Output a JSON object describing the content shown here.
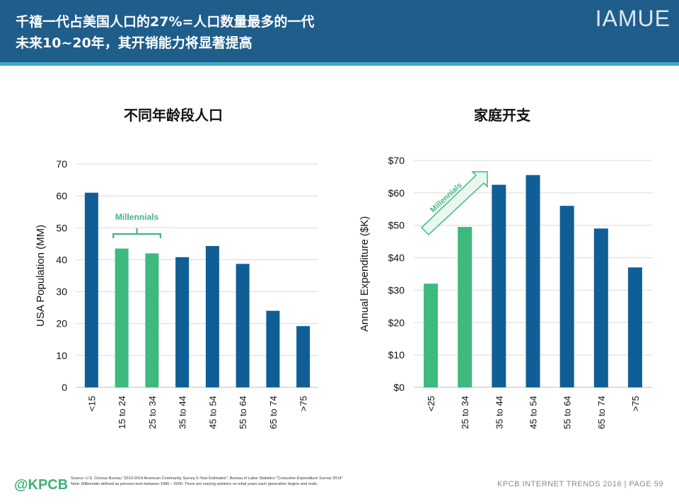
{
  "header": {
    "title_line1": "千禧一代占美国人口的27%=人口数量最多的一代",
    "title_line2": "未来10~20年，其开销能力将显著提高",
    "brand": "IAMUE"
  },
  "colors": {
    "header": "#1f5d8b",
    "stripe": "#3fa9c9",
    "blue_bar": "#0f5f96",
    "green_bar": "#3dba7e"
  },
  "chart_data": [
    {
      "type": "bar",
      "title": "不同年龄段人口",
      "ylabel": "USA Population (MM)",
      "xlabel": "",
      "ylim": [
        0,
        70
      ],
      "yticks": [
        "0",
        "10",
        "20",
        "30",
        "40",
        "50",
        "60",
        "70"
      ],
      "categories": [
        "<15",
        "15 to 24",
        "25 to 34",
        "35 to 44",
        "45 to 54",
        "55 to 64",
        "65 to 74",
        ">75"
      ],
      "values": [
        61,
        43.5,
        42,
        40.8,
        44.3,
        38.7,
        24,
        19.2
      ],
      "highlight": [
        false,
        true,
        true,
        false,
        false,
        false,
        false,
        false
      ],
      "annotation": "Millennials",
      "grid": true
    },
    {
      "type": "bar",
      "title": "家庭开支",
      "ylabel": "Annual Expenditure ($K)",
      "xlabel": "",
      "ylim": [
        0,
        70
      ],
      "yticks": [
        "$0",
        "$10",
        "$20",
        "$30",
        "$40",
        "$50",
        "$60",
        "$70"
      ],
      "categories": [
        "<25",
        "25 to 34",
        "35 to 44",
        "45 to 54",
        "55 to 64",
        "65 to 74",
        ">75"
      ],
      "values": [
        32,
        49.5,
        62.5,
        65.5,
        56,
        49,
        37
      ],
      "highlight": [
        true,
        true,
        false,
        false,
        false,
        false,
        false
      ],
      "annotation": "Millennials",
      "grid": true
    }
  ],
  "footer": {
    "logo": "@KPCB",
    "source": "Source: U.S. Census Bureau \"2010-2014 American Community Survey 5-Year Estimates\", Bureau of Labor Statistics \"Consumer Expenditure Survey 2014\"",
    "note": "Note: Millennials defined as persons born between 1980 – 2000. There are varying opinions on what years each generation begins and ends.",
    "right": "KPCB INTERNET TRENDS 2016  |  PAGE 59"
  }
}
